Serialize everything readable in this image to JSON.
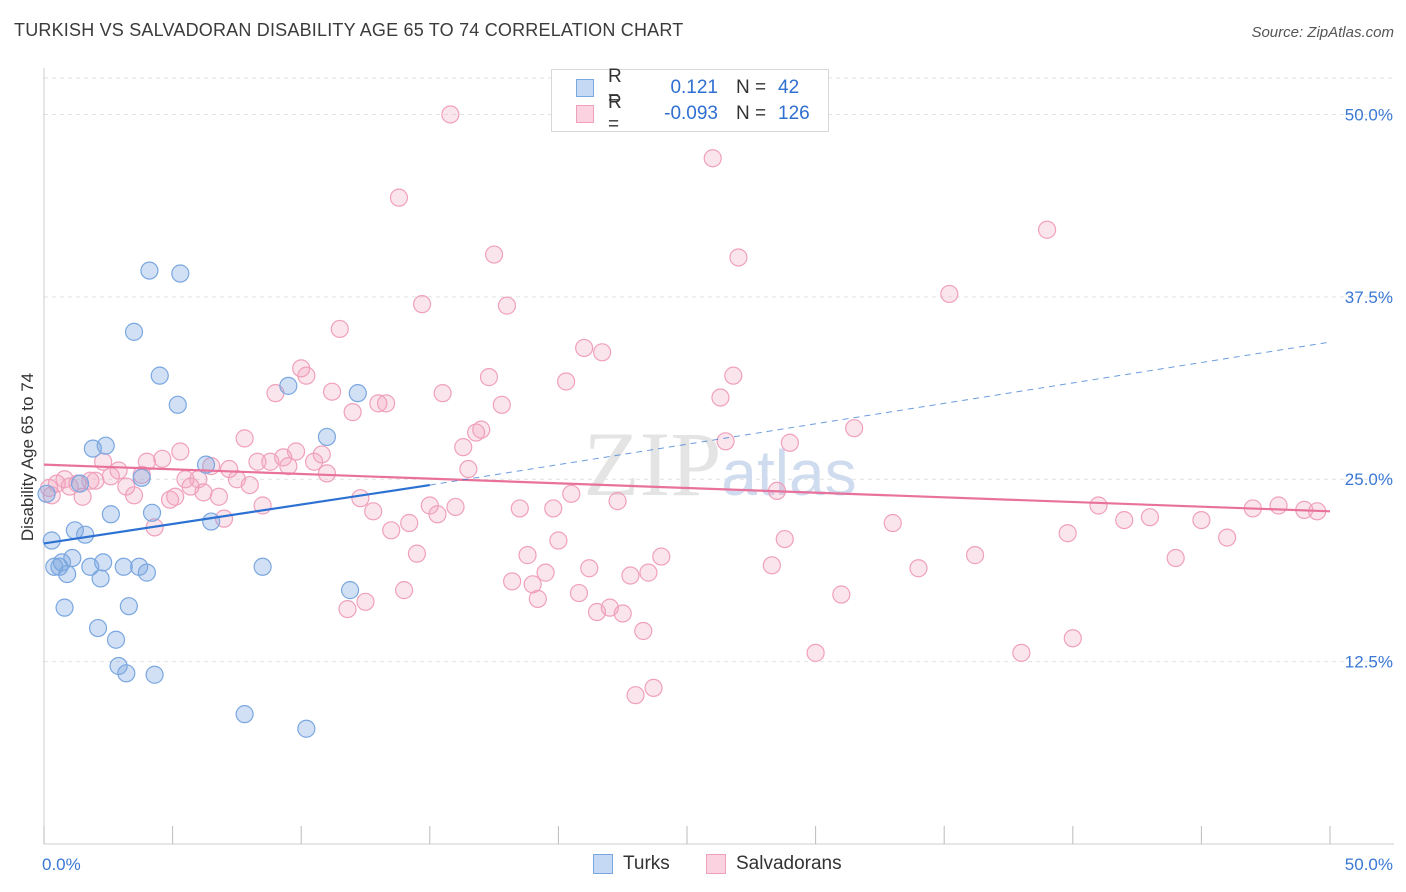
{
  "title": "TURKISH VS SALVADORAN DISABILITY AGE 65 TO 74 CORRELATION CHART",
  "source": "Source: ZipAtlas.com",
  "watermark": "ZIPatlas",
  "legend": {
    "rows": [
      {
        "r_label": "R =",
        "r_value": "0.121",
        "n_label": "N =",
        "n_value": "42"
      },
      {
        "r_label": "R =",
        "r_value": "-0.093",
        "n_label": "N =",
        "n_value": "126"
      }
    ]
  },
  "bottom_legend": {
    "turks": "Turks",
    "salvadorans": "Salvadorans"
  },
  "chart_data": {
    "type": "scatter",
    "title": "TURKISH VS SALVADORAN DISABILITY AGE 65 TO 74 CORRELATION CHART",
    "xlabel": "",
    "ylabel": "Disability Age 65 to 74",
    "xlim": [
      0,
      50
    ],
    "ylim": [
      0,
      52.5
    ],
    "x_tick_labels": [
      "0.0%",
      "50.0%"
    ],
    "y_ticks": [
      12.5,
      25.0,
      37.5,
      50.0
    ],
    "y_tick_labels": [
      "12.5%",
      "25.0%",
      "37.5%",
      "50.0%"
    ],
    "colors": {
      "turks": "#7aa7e0",
      "salvadorans": "#f0a0bc",
      "turks_line": "#2d72d2",
      "salvadorans_line": "#e8729b",
      "tick_text": "#3a78d4"
    },
    "series": [
      {
        "name": "Turks",
        "r": 0.121,
        "n": 42,
        "trend": {
          "x0": 0,
          "y0": 20.6,
          "x1": 15,
          "y1": 24.6,
          "dashed_to_x": 50,
          "dashed_to_y": 34.4
        },
        "points": [
          [
            0.1,
            24.0
          ],
          [
            0.3,
            20.8
          ],
          [
            0.4,
            19.0
          ],
          [
            0.6,
            19.0
          ],
          [
            0.7,
            19.3
          ],
          [
            0.8,
            16.2
          ],
          [
            0.9,
            18.5
          ],
          [
            1.1,
            19.6
          ],
          [
            1.2,
            21.5
          ],
          [
            1.4,
            24.7
          ],
          [
            1.6,
            21.2
          ],
          [
            1.8,
            19.0
          ],
          [
            1.9,
            27.1
          ],
          [
            2.1,
            14.8
          ],
          [
            2.2,
            18.2
          ],
          [
            2.3,
            19.3
          ],
          [
            2.4,
            27.3
          ],
          [
            2.6,
            22.6
          ],
          [
            2.8,
            14.0
          ],
          [
            2.9,
            12.2
          ],
          [
            3.1,
            19.0
          ],
          [
            3.2,
            11.7
          ],
          [
            3.3,
            16.3
          ],
          [
            3.5,
            35.1
          ],
          [
            3.7,
            19.0
          ],
          [
            3.8,
            25.1
          ],
          [
            4.0,
            18.6
          ],
          [
            4.1,
            39.3
          ],
          [
            4.2,
            22.7
          ],
          [
            4.3,
            11.6
          ],
          [
            4.5,
            32.1
          ],
          [
            5.2,
            30.1
          ],
          [
            5.3,
            39.1
          ],
          [
            6.3,
            26.0
          ],
          [
            6.5,
            22.1
          ],
          [
            7.8,
            8.9
          ],
          [
            8.5,
            19.0
          ],
          [
            9.5,
            31.4
          ],
          [
            10.2,
            7.9
          ],
          [
            11.0,
            27.9
          ],
          [
            11.9,
            17.4
          ],
          [
            12.2,
            30.9
          ]
        ]
      },
      {
        "name": "Salvadorans",
        "r": -0.093,
        "n": 126,
        "trend": {
          "x0": 0,
          "y0": 26.0,
          "x1": 50,
          "y1": 22.8
        },
        "points": [
          [
            0.2,
            24.4
          ],
          [
            0.5,
            24.7
          ],
          [
            0.8,
            25.0
          ],
          [
            1.0,
            24.5
          ],
          [
            1.3,
            24.7
          ],
          [
            1.5,
            23.8
          ],
          [
            1.8,
            24.9
          ],
          [
            2.0,
            24.9
          ],
          [
            2.3,
            26.2
          ],
          [
            2.6,
            25.2
          ],
          [
            2.9,
            25.6
          ],
          [
            3.2,
            24.5
          ],
          [
            3.5,
            23.9
          ],
          [
            3.8,
            25.3
          ],
          [
            4.0,
            26.2
          ],
          [
            4.3,
            21.7
          ],
          [
            4.6,
            26.4
          ],
          [
            4.9,
            23.6
          ],
          [
            5.1,
            23.8
          ],
          [
            5.3,
            26.9
          ],
          [
            5.5,
            25.0
          ],
          [
            5.7,
            24.5
          ],
          [
            6.0,
            25.0
          ],
          [
            6.2,
            24.1
          ],
          [
            6.5,
            25.9
          ],
          [
            6.8,
            23.8
          ],
          [
            7.0,
            22.3
          ],
          [
            7.2,
            25.7
          ],
          [
            7.5,
            25.0
          ],
          [
            7.8,
            27.8
          ],
          [
            8.0,
            24.6
          ],
          [
            8.3,
            26.2
          ],
          [
            8.5,
            23.2
          ],
          [
            8.8,
            26.2
          ],
          [
            9.0,
            30.9
          ],
          [
            9.3,
            26.5
          ],
          [
            9.5,
            25.9
          ],
          [
            9.8,
            26.9
          ],
          [
            10.0,
            32.6
          ],
          [
            10.2,
            32.1
          ],
          [
            10.5,
            26.2
          ],
          [
            10.8,
            26.7
          ],
          [
            11.0,
            25.4
          ],
          [
            11.2,
            31.0
          ],
          [
            11.5,
            35.3
          ],
          [
            11.8,
            16.1
          ],
          [
            12.0,
            29.6
          ],
          [
            12.3,
            23.7
          ],
          [
            12.5,
            16.6
          ],
          [
            12.8,
            22.8
          ],
          [
            13.0,
            30.2
          ],
          [
            13.3,
            30.2
          ],
          [
            13.5,
            21.5
          ],
          [
            13.8,
            44.3
          ],
          [
            14.0,
            17.4
          ],
          [
            14.2,
            22.0
          ],
          [
            14.5,
            19.9
          ],
          [
            14.7,
            37.0
          ],
          [
            15.0,
            23.2
          ],
          [
            15.3,
            22.6
          ],
          [
            15.5,
            30.9
          ],
          [
            15.8,
            50.0
          ],
          [
            16.0,
            23.1
          ],
          [
            16.3,
            27.2
          ],
          [
            16.5,
            25.7
          ],
          [
            16.8,
            28.2
          ],
          [
            17.0,
            28.4
          ],
          [
            17.3,
            32.0
          ],
          [
            17.5,
            40.4
          ],
          [
            17.8,
            30.1
          ],
          [
            18.0,
            36.9
          ],
          [
            18.2,
            18.0
          ],
          [
            18.5,
            23.0
          ],
          [
            18.8,
            19.8
          ],
          [
            19.0,
            17.8
          ],
          [
            19.2,
            16.8
          ],
          [
            19.5,
            18.6
          ],
          [
            19.8,
            23.0
          ],
          [
            20.0,
            20.8
          ],
          [
            20.3,
            31.7
          ],
          [
            20.5,
            24.0
          ],
          [
            20.8,
            17.2
          ],
          [
            21.0,
            34.0
          ],
          [
            21.2,
            18.9
          ],
          [
            21.5,
            15.9
          ],
          [
            21.7,
            33.7
          ],
          [
            22.0,
            16.2
          ],
          [
            22.3,
            23.5
          ],
          [
            22.5,
            15.8
          ],
          [
            22.8,
            18.4
          ],
          [
            23.0,
            10.2
          ],
          [
            23.3,
            14.6
          ],
          [
            23.5,
            18.6
          ],
          [
            23.7,
            10.7
          ],
          [
            24.0,
            19.7
          ],
          [
            26.0,
            47.0
          ],
          [
            26.3,
            30.6
          ],
          [
            26.5,
            27.6
          ],
          [
            26.8,
            32.1
          ],
          [
            27.0,
            40.2
          ],
          [
            28.3,
            19.1
          ],
          [
            28.5,
            24.2
          ],
          [
            28.8,
            20.9
          ],
          [
            29.0,
            27.5
          ],
          [
            30.0,
            13.1
          ],
          [
            31.0,
            17.1
          ],
          [
            31.5,
            28.5
          ],
          [
            33.0,
            22.0
          ],
          [
            34.0,
            18.9
          ],
          [
            35.2,
            37.7
          ],
          [
            36.2,
            19.8
          ],
          [
            38.0,
            13.1
          ],
          [
            39.0,
            42.1
          ],
          [
            39.8,
            21.3
          ],
          [
            40.0,
            14.1
          ],
          [
            41.0,
            23.2
          ],
          [
            42.0,
            22.2
          ],
          [
            43.0,
            22.4
          ],
          [
            44.0,
            19.6
          ],
          [
            45.0,
            22.2
          ],
          [
            46.0,
            21.0
          ],
          [
            47.0,
            23.0
          ],
          [
            48.0,
            23.2
          ],
          [
            49.0,
            22.9
          ],
          [
            49.5,
            22.8
          ],
          [
            0.3,
            23.9
          ]
        ]
      }
    ]
  }
}
